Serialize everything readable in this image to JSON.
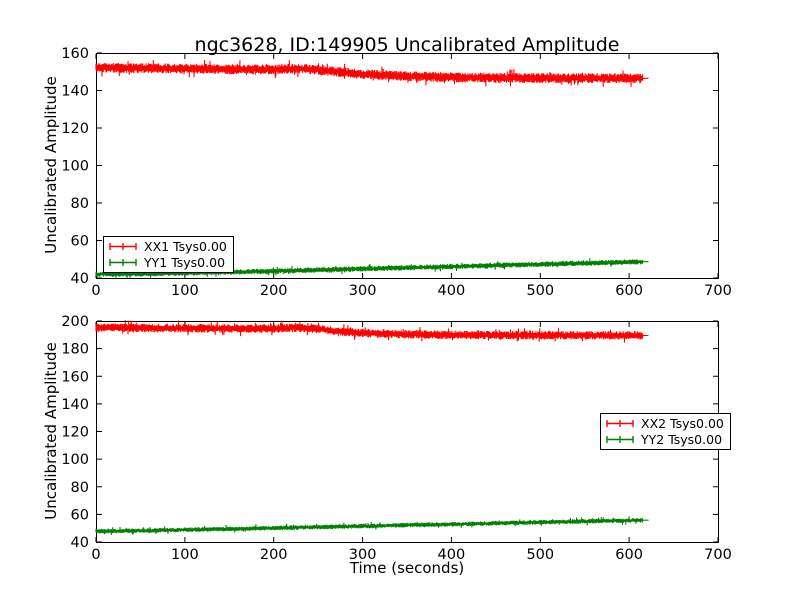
{
  "figure": {
    "title": "ngc3628, ID:149905 Uncalibrated Amplitude",
    "xlabel": "Time (seconds)",
    "background_color": "#ffffff",
    "axis_color": "#000000",
    "tick_direction": "in"
  },
  "chart_data": [
    {
      "type": "line",
      "subplot": "top",
      "ylabel": "Uncalibrated Amplitude",
      "xlim": [
        0,
        700
      ],
      "ylim": [
        40,
        160
      ],
      "xticks": [
        0,
        100,
        200,
        300,
        400,
        500,
        600,
        700
      ],
      "yticks": [
        40,
        60,
        80,
        100,
        120,
        140,
        160
      ],
      "grid": false,
      "legend_position": "lower-left",
      "series": [
        {
          "name": "XX1 Tsys0.00",
          "color": "#ff0000",
          "style": "errorbar-band",
          "band_halfwidth": 2.2,
          "x": [
            0,
            50,
            100,
            150,
            200,
            225,
            250,
            275,
            300,
            350,
            400,
            450,
            500,
            550,
            600,
            615
          ],
          "y": [
            152.2,
            151.9,
            151.7,
            151.4,
            151.2,
            151.8,
            151.0,
            149.8,
            148.8,
            147.6,
            147.0,
            146.8,
            146.7,
            146.6,
            146.5,
            146.5
          ]
        },
        {
          "name": "YY1 Tsys0.00",
          "color": "#007f00",
          "style": "errorbar-band",
          "band_halfwidth": 1.2,
          "x": [
            0,
            50,
            100,
            150,
            200,
            250,
            300,
            350,
            400,
            450,
            500,
            550,
            600,
            615
          ],
          "y": [
            42.0,
            42.2,
            42.6,
            43.1,
            43.7,
            44.3,
            44.9,
            45.5,
            46.1,
            46.7,
            47.3,
            47.9,
            48.5,
            48.7
          ]
        }
      ]
    },
    {
      "type": "line",
      "subplot": "bottom",
      "ylabel": "Uncalibrated Amplitude",
      "xlim": [
        0,
        700
      ],
      "ylim": [
        40,
        200
      ],
      "xticks": [
        0,
        100,
        200,
        300,
        400,
        500,
        600,
        700
      ],
      "yticks": [
        40,
        60,
        80,
        100,
        120,
        140,
        160,
        180,
        200
      ],
      "grid": false,
      "legend_position": "center-right",
      "series": [
        {
          "name": "XX2 Tsys0.00",
          "color": "#ff0000",
          "style": "errorbar-band",
          "band_halfwidth": 2.6,
          "x": [
            0,
            50,
            100,
            150,
            200,
            225,
            250,
            275,
            300,
            350,
            400,
            450,
            500,
            550,
            600,
            615
          ],
          "y": [
            195.3,
            195.0,
            194.8,
            194.6,
            194.5,
            195.2,
            194.2,
            192.5,
            191.3,
            190.4,
            190.0,
            189.8,
            189.7,
            189.6,
            189.5,
            189.5
          ]
        },
        {
          "name": "YY2 Tsys0.00",
          "color": "#007f00",
          "style": "errorbar-band",
          "band_halfwidth": 1.4,
          "x": [
            0,
            50,
            100,
            150,
            200,
            250,
            300,
            350,
            400,
            450,
            500,
            550,
            600,
            615
          ],
          "y": [
            47.8,
            48.2,
            48.8,
            49.4,
            50.1,
            50.8,
            51.5,
            52.2,
            52.9,
            53.6,
            54.3,
            55.0,
            55.6,
            55.8
          ]
        }
      ]
    }
  ]
}
